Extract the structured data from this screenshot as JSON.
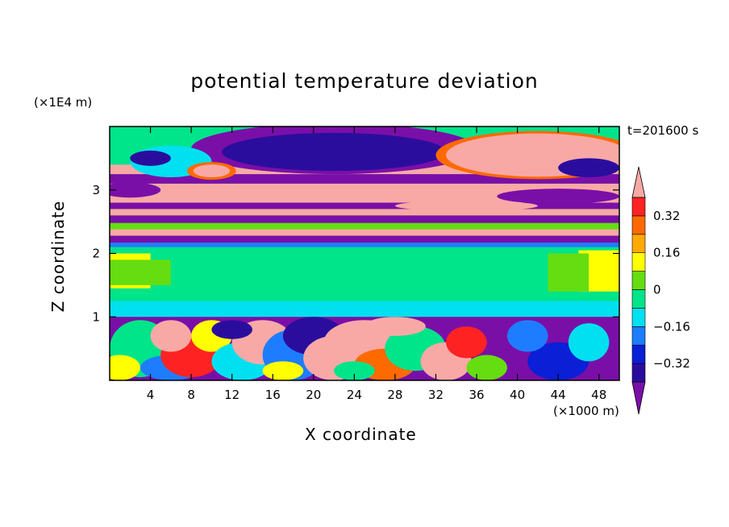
{
  "chart_data": {
    "type": "heatmap",
    "title": "potential temperature deviation",
    "time_label": "t=201600 s",
    "xlabel": "X coordinate",
    "ylabel": "Z coordinate",
    "x_unit": "(×1000 m)",
    "y_unit": "(×1E4 m)",
    "xlim": [
      0,
      50
    ],
    "ylim": [
      0,
      4
    ],
    "xticks": [
      "4",
      "8",
      "12",
      "16",
      "20",
      "24",
      "28",
      "32",
      "36",
      "40",
      "44",
      "48"
    ],
    "yticks": [
      "1",
      "2",
      "3"
    ],
    "colorbar": {
      "levels": [
        -0.4,
        -0.32,
        -0.24,
        -0.16,
        -0.08,
        0,
        0.08,
        0.16,
        0.24,
        0.32,
        0.4
      ],
      "labels": [
        "0.32",
        "0.16",
        "0",
        "−0.16",
        "−0.32"
      ],
      "colors": [
        "#7a0fa8",
        "#2b0d9e",
        "#0a1fd6",
        "#1e7dff",
        "#00e0f0",
        "#00e48a",
        "#66dd11",
        "#ffff00",
        "#ffaa00",
        "#ff6a00",
        "#ff2222",
        "#f8a9a6"
      ]
    },
    "bands": [
      {
        "z": [
          0,
          0.9
        ],
        "value": "mixed turbulent (−0.4 to 0.4)"
      },
      {
        "z": [
          1.0,
          1.2
        ],
        "value": -0.1
      },
      {
        "z": [
          1.2,
          2.1
        ],
        "value": 0.05
      },
      {
        "z": [
          2.1,
          2.3
        ],
        "value": -0.4
      },
      {
        "z": [
          2.3,
          2.5
        ],
        "value": 0.4
      },
      {
        "z": [
          2.5,
          2.7
        ],
        "value": -0.4
      },
      {
        "z": [
          2.8,
          3.1
        ],
        "value": 0.4
      },
      {
        "z": [
          3.3,
          3.9
        ],
        "value": "mixed (−0.4 to 0.4)"
      }
    ]
  }
}
